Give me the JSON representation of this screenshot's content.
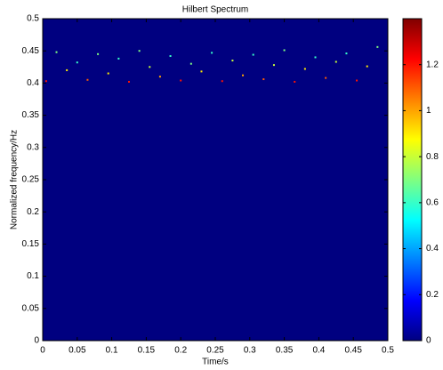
{
  "chart_data": {
    "type": "heatmap",
    "title": "Hilbert Spectrum",
    "xlabel": "Time/s",
    "ylabel": "Normalized frequency/Hz",
    "colormap": "jet",
    "xlim": [
      0,
      0.5
    ],
    "ylim": [
      0,
      0.5
    ],
    "xticks": [
      0,
      0.05,
      0.1,
      0.15,
      0.2,
      0.25,
      0.3,
      0.35,
      0.4,
      0.45,
      0.5
    ],
    "yticks": [
      0,
      0.05,
      0.1,
      0.15,
      0.2,
      0.25,
      0.3,
      0.35,
      0.4,
      0.45,
      0.5
    ],
    "clim": [
      0,
      1.4
    ],
    "cticks": [
      0,
      0.2,
      0.4,
      0.6,
      0.8,
      1,
      1.2
    ],
    "x": [
      0.005,
      0.02,
      0.035,
      0.05,
      0.065,
      0.08,
      0.095,
      0.11,
      0.125,
      0.14,
      0.155,
      0.17,
      0.185,
      0.2,
      0.215,
      0.23,
      0.245,
      0.26,
      0.275,
      0.29,
      0.305,
      0.32,
      0.335,
      0.35,
      0.365,
      0.38,
      0.395,
      0.41,
      0.425,
      0.44,
      0.455,
      0.47,
      0.485
    ],
    "y": [
      0.403,
      0.448,
      0.42,
      0.432,
      0.405,
      0.445,
      0.415,
      0.438,
      0.402,
      0.45,
      0.425,
      0.41,
      0.442,
      0.404,
      0.43,
      0.418,
      0.447,
      0.403,
      0.435,
      0.412,
      0.444,
      0.406,
      0.428,
      0.451,
      0.402,
      0.422,
      0.44,
      0.408,
      0.433,
      0.446,
      0.404,
      0.426,
      0.456
    ],
    "values": [
      1.2,
      0.7,
      0.9,
      0.6,
      1.1,
      0.7,
      0.9,
      0.6,
      1.2,
      0.7,
      0.8,
      1.0,
      0.6,
      1.2,
      0.7,
      0.9,
      0.6,
      1.2,
      0.8,
      1.0,
      0.6,
      1.1,
      0.8,
      0.7,
      1.2,
      0.9,
      0.6,
      1.1,
      0.8,
      0.6,
      1.2,
      0.9,
      0.7
    ]
  }
}
